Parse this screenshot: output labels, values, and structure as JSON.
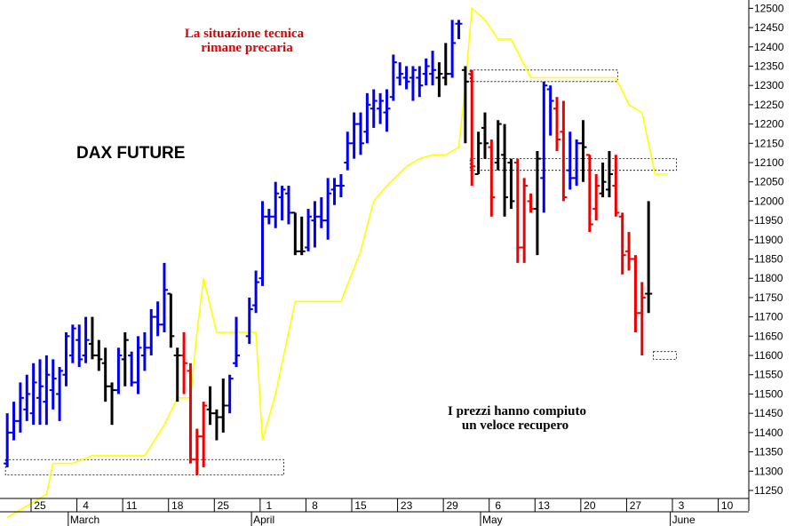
{
  "chart_data": {
    "type": "ohlc",
    "title": "DAX FUTURE",
    "annotations": [
      {
        "lines": [
          "La situazione tecnica",
          "rimane precaria"
        ],
        "color": "#e00000"
      },
      {
        "lines": [
          "I prezzi hanno compiuto",
          "un veloce recupero"
        ],
        "color": "#000000"
      }
    ],
    "y_axis": {
      "side": "right",
      "min": 11220,
      "max": 12510,
      "ticks": [
        11250,
        11300,
        11350,
        11400,
        11450,
        11500,
        11550,
        11600,
        11650,
        11700,
        11750,
        11800,
        11850,
        11900,
        11950,
        12000,
        12050,
        12100,
        12150,
        12200,
        12250,
        12300,
        12350,
        12400,
        12450,
        12500
      ]
    },
    "x_axis": {
      "day_ticks": [
        {
          "day": 0,
          "label": "25"
        },
        {
          "day": 7,
          "label": "4"
        },
        {
          "day": 14,
          "label": "11"
        },
        {
          "day": 21,
          "label": "18"
        },
        {
          "day": 28,
          "label": "25"
        },
        {
          "day": 35,
          "label": "1"
        },
        {
          "day": 42,
          "label": "8"
        },
        {
          "day": 49,
          "label": "15"
        },
        {
          "day": 56,
          "label": "23"
        },
        {
          "day": 63,
          "label": "29"
        },
        {
          "day": 70,
          "label": "6"
        },
        {
          "day": 77,
          "label": "13"
        },
        {
          "day": 84,
          "label": "20"
        },
        {
          "day": 91,
          "label": "27"
        },
        {
          "day": 98,
          "label": "3"
        },
        {
          "day": 105,
          "label": "10"
        }
      ],
      "months": [
        {
          "day": 5,
          "label": "March"
        },
        {
          "day": 33,
          "label": "April"
        },
        {
          "day": 68,
          "label": "May"
        },
        {
          "day": 97,
          "label": "June"
        }
      ]
    },
    "grid": false,
    "colors": {
      "up": "#0000ee",
      "down": "#ee0000",
      "neutral": "#000000",
      "indicator": "#ffff00"
    },
    "bars": [
      {
        "d": -5,
        "o": 11320,
        "h": 11450,
        "l": 11310,
        "c": 11400,
        "color": "blue"
      },
      {
        "d": -4,
        "o": 11400,
        "h": 11480,
        "l": 11380,
        "c": 11430,
        "color": "blue"
      },
      {
        "d": -3,
        "o": 11430,
        "h": 11530,
        "l": 11400,
        "c": 11490,
        "color": "blue"
      },
      {
        "d": -2,
        "o": 11460,
        "h": 11550,
        "l": 11430,
        "c": 11500,
        "color": "blue"
      },
      {
        "d": -1,
        "o": 11450,
        "h": 11580,
        "l": 11420,
        "c": 11530,
        "color": "blue"
      },
      {
        "d": 0,
        "o": 11490,
        "h": 11590,
        "l": 11420,
        "c": 11520,
        "color": "blue"
      },
      {
        "d": 1,
        "o": 11480,
        "h": 11600,
        "l": 11420,
        "c": 11550,
        "color": "blue"
      },
      {
        "d": 2,
        "o": 11510,
        "h": 11590,
        "l": 11460,
        "c": 11540,
        "color": "blue"
      },
      {
        "d": 3,
        "o": 11500,
        "h": 11570,
        "l": 11430,
        "c": 11560,
        "color": "blue"
      },
      {
        "d": 4,
        "o": 11550,
        "h": 11660,
        "l": 11520,
        "c": 11650,
        "color": "blue"
      },
      {
        "d": 5,
        "o": 11600,
        "h": 11680,
        "l": 11580,
        "c": 11670,
        "color": "blue"
      },
      {
        "d": 6,
        "o": 11640,
        "h": 11680,
        "l": 11570,
        "c": 11590,
        "color": "blue"
      },
      {
        "d": 7,
        "o": 11600,
        "h": 11700,
        "l": 11580,
        "c": 11640,
        "color": "blue"
      },
      {
        "d": 8,
        "o": 11630,
        "h": 11700,
        "l": 11590,
        "c": 11600,
        "color": "black"
      },
      {
        "d": 9,
        "o": 11600,
        "h": 11640,
        "l": 11560,
        "c": 11590,
        "color": "black"
      },
      {
        "d": 10,
        "o": 11580,
        "h": 11620,
        "l": 11480,
        "c": 11520,
        "color": "black"
      },
      {
        "d": 11,
        "o": 11520,
        "h": 11530,
        "l": 11420,
        "c": 11510,
        "color": "black"
      },
      {
        "d": 12,
        "o": 11510,
        "h": 11620,
        "l": 11500,
        "c": 11600,
        "color": "blue"
      },
      {
        "d": 13,
        "o": 11590,
        "h": 11660,
        "l": 11520,
        "c": 11640,
        "color": "black"
      },
      {
        "d": 14,
        "o": 11600,
        "h": 11610,
        "l": 11520,
        "c": 11530,
        "color": "blue"
      },
      {
        "d": 15,
        "o": 11530,
        "h": 11650,
        "l": 11500,
        "c": 11620,
        "color": "blue"
      },
      {
        "d": 16,
        "o": 11600,
        "h": 11660,
        "l": 11560,
        "c": 11620,
        "color": "blue"
      },
      {
        "d": 17,
        "o": 11620,
        "h": 11720,
        "l": 11600,
        "c": 11700,
        "color": "blue"
      },
      {
        "d": 18,
        "o": 11700,
        "h": 11740,
        "l": 11650,
        "c": 11680,
        "color": "blue"
      },
      {
        "d": 19,
        "o": 11680,
        "h": 11840,
        "l": 11660,
        "c": 11770,
        "color": "blue"
      },
      {
        "d": 20,
        "o": 11760,
        "h": 11760,
        "l": 11620,
        "c": 11650,
        "color": "black"
      },
      {
        "d": 21,
        "o": 11600,
        "h": 11620,
        "l": 11480,
        "c": 11600,
        "color": "black"
      },
      {
        "d": 22,
        "o": 11600,
        "h": 11660,
        "l": 11500,
        "c": 11580,
        "color": "red"
      },
      {
        "d": 23,
        "o": 11560,
        "h": 11580,
        "l": 11320,
        "c": 11330,
        "color": "red"
      },
      {
        "d": 24,
        "o": 11330,
        "h": 11410,
        "l": 11290,
        "c": 11390,
        "color": "red"
      },
      {
        "d": 25,
        "o": 11390,
        "h": 11480,
        "l": 11310,
        "c": 11470,
        "color": "red"
      },
      {
        "d": 26,
        "o": 11460,
        "h": 11520,
        "l": 11420,
        "c": 11450,
        "color": "black"
      },
      {
        "d": 27,
        "o": 11450,
        "h": 11460,
        "l": 11380,
        "c": 11440,
        "color": "black"
      },
      {
        "d": 28,
        "o": 11440,
        "h": 11540,
        "l": 11400,
        "c": 11470,
        "color": "black"
      },
      {
        "d": 29,
        "o": 11470,
        "h": 11550,
        "l": 11450,
        "c": 11540,
        "color": "blue"
      },
      {
        "d": 30,
        "o": 11580,
        "h": 11700,
        "l": 11570,
        "c": 11600,
        "color": "blue"
      },
      {
        "d": 32,
        "o": 11650,
        "h": 11750,
        "l": 11630,
        "c": 11720,
        "color": "blue"
      },
      {
        "d": 33,
        "o": 11730,
        "h": 11820,
        "l": 11710,
        "c": 11790,
        "color": "blue"
      },
      {
        "d": 34,
        "o": 11800,
        "h": 12000,
        "l": 11780,
        "c": 11960,
        "color": "blue"
      },
      {
        "d": 35,
        "o": 11960,
        "h": 11980,
        "l": 11940,
        "c": 11960,
        "color": "blue"
      },
      {
        "d": 36,
        "o": 11960,
        "h": 12050,
        "l": 11930,
        "c": 12020,
        "color": "blue"
      },
      {
        "d": 37,
        "o": 12010,
        "h": 12040,
        "l": 11950,
        "c": 12030,
        "color": "blue"
      },
      {
        "d": 38,
        "o": 12020,
        "h": 12040,
        "l": 11940,
        "c": 11970,
        "color": "blue"
      },
      {
        "d": 39,
        "o": 11970,
        "h": 11970,
        "l": 11860,
        "c": 11870,
        "color": "black"
      },
      {
        "d": 40,
        "o": 11870,
        "h": 11960,
        "l": 11860,
        "c": 11870,
        "color": "black"
      },
      {
        "d": 41,
        "o": 11880,
        "h": 11980,
        "l": 11870,
        "c": 11960,
        "color": "blue"
      },
      {
        "d": 42,
        "o": 11950,
        "h": 12000,
        "l": 11880,
        "c": 11960,
        "color": "blue"
      },
      {
        "d": 43,
        "o": 11960,
        "h": 12010,
        "l": 11930,
        "c": 11950,
        "color": "blue"
      },
      {
        "d": 44,
        "o": 11950,
        "h": 12060,
        "l": 11900,
        "c": 12020,
        "color": "blue"
      },
      {
        "d": 45,
        "o": 12030,
        "h": 12060,
        "l": 11990,
        "c": 12040,
        "color": "blue"
      },
      {
        "d": 46,
        "o": 12040,
        "h": 12070,
        "l": 12010,
        "c": 12040,
        "color": "blue"
      },
      {
        "d": 47,
        "o": 12100,
        "h": 12180,
        "l": 12080,
        "c": 12150,
        "color": "blue"
      },
      {
        "d": 48,
        "o": 12150,
        "h": 12230,
        "l": 12110,
        "c": 12200,
        "color": "blue"
      },
      {
        "d": 49,
        "o": 12200,
        "h": 12230,
        "l": 12120,
        "c": 12150,
        "color": "blue"
      },
      {
        "d": 50,
        "o": 12180,
        "h": 12280,
        "l": 12150,
        "c": 12250,
        "color": "blue"
      },
      {
        "d": 51,
        "o": 12240,
        "h": 12290,
        "l": 12190,
        "c": 12260,
        "color": "blue"
      },
      {
        "d": 52,
        "o": 12240,
        "h": 12280,
        "l": 12200,
        "c": 12260,
        "color": "blue"
      },
      {
        "d": 53,
        "o": 12230,
        "h": 12290,
        "l": 12180,
        "c": 12240,
        "color": "blue"
      },
      {
        "d": 54,
        "o": 12270,
        "h": 12380,
        "l": 12260,
        "c": 12360,
        "color": "blue"
      },
      {
        "d": 55,
        "o": 12320,
        "h": 12360,
        "l": 12300,
        "c": 12330,
        "color": "blue"
      },
      {
        "d": 56,
        "o": 12320,
        "h": 12350,
        "l": 12290,
        "c": 12310,
        "color": "blue"
      },
      {
        "d": 57,
        "o": 12320,
        "h": 12350,
        "l": 12260,
        "c": 12340,
        "color": "blue"
      },
      {
        "d": 58,
        "o": 12320,
        "h": 12350,
        "l": 12270,
        "c": 12300,
        "color": "blue"
      },
      {
        "d": 59,
        "o": 12330,
        "h": 12370,
        "l": 12300,
        "c": 12350,
        "color": "blue"
      },
      {
        "d": 60,
        "o": 12330,
        "h": 12390,
        "l": 12300,
        "c": 12340,
        "color": "blue"
      },
      {
        "d": 61,
        "o": 12320,
        "h": 12360,
        "l": 12270,
        "c": 12330,
        "color": "black"
      },
      {
        "d": 62,
        "o": 12320,
        "h": 12410,
        "l": 12300,
        "c": 12330,
        "color": "black"
      },
      {
        "d": 63,
        "o": 12330,
        "h": 12470,
        "l": 12320,
        "c": 12410,
        "color": "blue"
      },
      {
        "d": 64,
        "o": 12460,
        "h": 12470,
        "l": 12420,
        "c": 12460,
        "color": "blue"
      },
      {
        "d": 65,
        "o": 12340,
        "h": 12350,
        "l": 12150,
        "c": 12310,
        "color": "black"
      },
      {
        "d": 66,
        "o": 12330,
        "h": 12340,
        "l": 12040,
        "c": 12090,
        "color": "red"
      },
      {
        "d": 67,
        "o": 12070,
        "h": 12180,
        "l": 12070,
        "c": 12150,
        "color": "black"
      },
      {
        "d": 68,
        "o": 12190,
        "h": 12230,
        "l": 12110,
        "c": 12150,
        "color": "black"
      },
      {
        "d": 69,
        "o": 12140,
        "h": 12160,
        "l": 11960,
        "c": 12010,
        "color": "red"
      },
      {
        "d": 70,
        "o": 12100,
        "h": 12210,
        "l": 12080,
        "c": 12200,
        "color": "black"
      },
      {
        "d": 71,
        "o": 12120,
        "h": 12200,
        "l": 11960,
        "c": 12010,
        "color": "black"
      },
      {
        "d": 72,
        "o": 12100,
        "h": 12110,
        "l": 11980,
        "c": 12000,
        "color": "black"
      },
      {
        "d": 73,
        "o": 12100,
        "h": 12110,
        "l": 11840,
        "c": 11880,
        "color": "red"
      },
      {
        "d": 74,
        "o": 11880,
        "h": 12060,
        "l": 11840,
        "c": 12040,
        "color": "red"
      },
      {
        "d": 75,
        "o": 12000,
        "h": 12020,
        "l": 11970,
        "c": 11980,
        "color": "red"
      },
      {
        "d": 76,
        "o": 11980,
        "h": 12130,
        "l": 11860,
        "c": 12110,
        "color": "black"
      },
      {
        "d": 77,
        "o": 12060,
        "h": 12310,
        "l": 11970,
        "c": 12300,
        "color": "blue"
      },
      {
        "d": 78,
        "o": 12290,
        "h": 12300,
        "l": 12170,
        "c": 12260,
        "color": "blue"
      },
      {
        "d": 79,
        "o": 12240,
        "h": 12270,
        "l": 12130,
        "c": 12160,
        "color": "red"
      },
      {
        "d": 80,
        "o": 12180,
        "h": 12260,
        "l": 12000,
        "c": 12010,
        "color": "red"
      },
      {
        "d": 81,
        "o": 12080,
        "h": 12180,
        "l": 12030,
        "c": 12060,
        "color": "blue"
      },
      {
        "d": 82,
        "o": 12060,
        "h": 12160,
        "l": 12040,
        "c": 12150,
        "color": "blue"
      },
      {
        "d": 83,
        "o": 12150,
        "h": 12210,
        "l": 12050,
        "c": 12140,
        "color": "black"
      },
      {
        "d": 84,
        "o": 12120,
        "h": 12120,
        "l": 11920,
        "c": 11940,
        "color": "red"
      },
      {
        "d": 85,
        "o": 11980,
        "h": 12070,
        "l": 11950,
        "c": 12040,
        "color": "red"
      },
      {
        "d": 86,
        "o": 12020,
        "h": 12100,
        "l": 12010,
        "c": 12050,
        "color": "black"
      },
      {
        "d": 87,
        "o": 12030,
        "h": 12130,
        "l": 12010,
        "c": 12070,
        "color": "black"
      },
      {
        "d": 88,
        "o": 12040,
        "h": 12120,
        "l": 11960,
        "c": 11970,
        "color": "red"
      },
      {
        "d": 89,
        "o": 11960,
        "h": 11970,
        "l": 11810,
        "c": 11860,
        "color": "red"
      },
      {
        "d": 90,
        "o": 11870,
        "h": 11920,
        "l": 11820,
        "c": 11850,
        "color": "red"
      },
      {
        "d": 91,
        "o": 11850,
        "h": 11860,
        "l": 11660,
        "c": 11710,
        "color": "red"
      },
      {
        "d": 92,
        "o": 11710,
        "h": 11790,
        "l": 11600,
        "c": 11750,
        "color": "red"
      },
      {
        "d": 93,
        "o": 11760,
        "h": 12000,
        "l": 11710,
        "c": 11760,
        "color": "black"
      }
    ],
    "indicator_line": [
      {
        "d": -5,
        "v": 11180
      },
      {
        "d": -1,
        "v": 11220
      },
      {
        "d": 1,
        "v": 11240
      },
      {
        "d": 2,
        "v": 11320
      },
      {
        "d": 5,
        "v": 11320
      },
      {
        "d": 8,
        "v": 11340
      },
      {
        "d": 16,
        "v": 11340
      },
      {
        "d": 19,
        "v": 11420
      },
      {
        "d": 21,
        "v": 11490
      },
      {
        "d": 23,
        "v": 11490
      },
      {
        "d": 24,
        "v": 11660
      },
      {
        "d": 25,
        "v": 11800
      },
      {
        "d": 27,
        "v": 11660
      },
      {
        "d": 33,
        "v": 11660
      },
      {
        "d": 34,
        "v": 11380
      },
      {
        "d": 36,
        "v": 11500
      },
      {
        "d": 39,
        "v": 11740
      },
      {
        "d": 46,
        "v": 11740
      },
      {
        "d": 49,
        "v": 11870
      },
      {
        "d": 51,
        "v": 12000
      },
      {
        "d": 53,
        "v": 12040
      },
      {
        "d": 56,
        "v": 12090
      },
      {
        "d": 58,
        "v": 12110
      },
      {
        "d": 60,
        "v": 12120
      },
      {
        "d": 62,
        "v": 12120
      },
      {
        "d": 64,
        "v": 12140
      },
      {
        "d": 65,
        "v": 12300
      },
      {
        "d": 66,
        "v": 12500
      },
      {
        "d": 68,
        "v": 12470
      },
      {
        "d": 70,
        "v": 12420
      },
      {
        "d": 72,
        "v": 12420
      },
      {
        "d": 75,
        "v": 12320
      },
      {
        "d": 80,
        "v": 12320
      },
      {
        "d": 84,
        "v": 12320
      },
      {
        "d": 88,
        "v": 12320
      },
      {
        "d": 90,
        "v": 12250
      },
      {
        "d": 92,
        "v": 12230
      },
      {
        "d": 94,
        "v": 12070
      },
      {
        "d": 96,
        "v": 12070
      }
    ],
    "zones": [
      {
        "d1": -5,
        "d2": 37,
        "low": 11290,
        "high": 11330
      },
      {
        "d1": 66,
        "d2": 88,
        "low": 12310,
        "high": 12340
      },
      {
        "d1": 66,
        "d2": 97,
        "low": 12080,
        "high": 12110
      },
      {
        "d1": 94,
        "d2": 97,
        "low": 11590,
        "high": 11610
      }
    ]
  }
}
